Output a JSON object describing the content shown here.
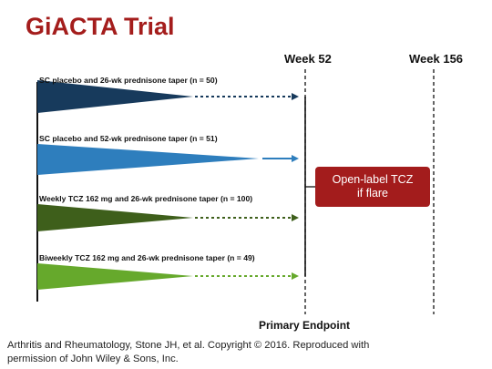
{
  "title": "GiACTA Trial",
  "timepoints": {
    "week52": "Week 52",
    "week156": "Week 156"
  },
  "arms": [
    {
      "label": "SC placebo and 26-wk prednisone taper (n = 50)",
      "color": "#173a5c",
      "taper_weeks": 26
    },
    {
      "label": "SC placebo and 52-wk prednisone taper (n = 51)",
      "color": "#2e7ebd",
      "taper_weeks": 52
    },
    {
      "label": "Weekly TCZ 162 mg and 26-wk prednisone taper (n = 100)",
      "color": "#3e5f1b",
      "taper_weeks": 26
    },
    {
      "label": "Biweekly TCZ 162 mg and 26-wk prednisone taper (n = 49)",
      "color": "#66a92c",
      "taper_weeks": 26
    }
  ],
  "open_label": {
    "line1": "Open-label TCZ",
    "line2": "if flare",
    "color": "#a31c1c"
  },
  "primary_endpoint": "Primary Endpoint",
  "citation": {
    "line1": "Arthritis and Rheumatology, Stone JH, et al. Copyright © 2016. Reproduced with",
    "line2": "permission of John Wiley & Sons, Inc."
  }
}
